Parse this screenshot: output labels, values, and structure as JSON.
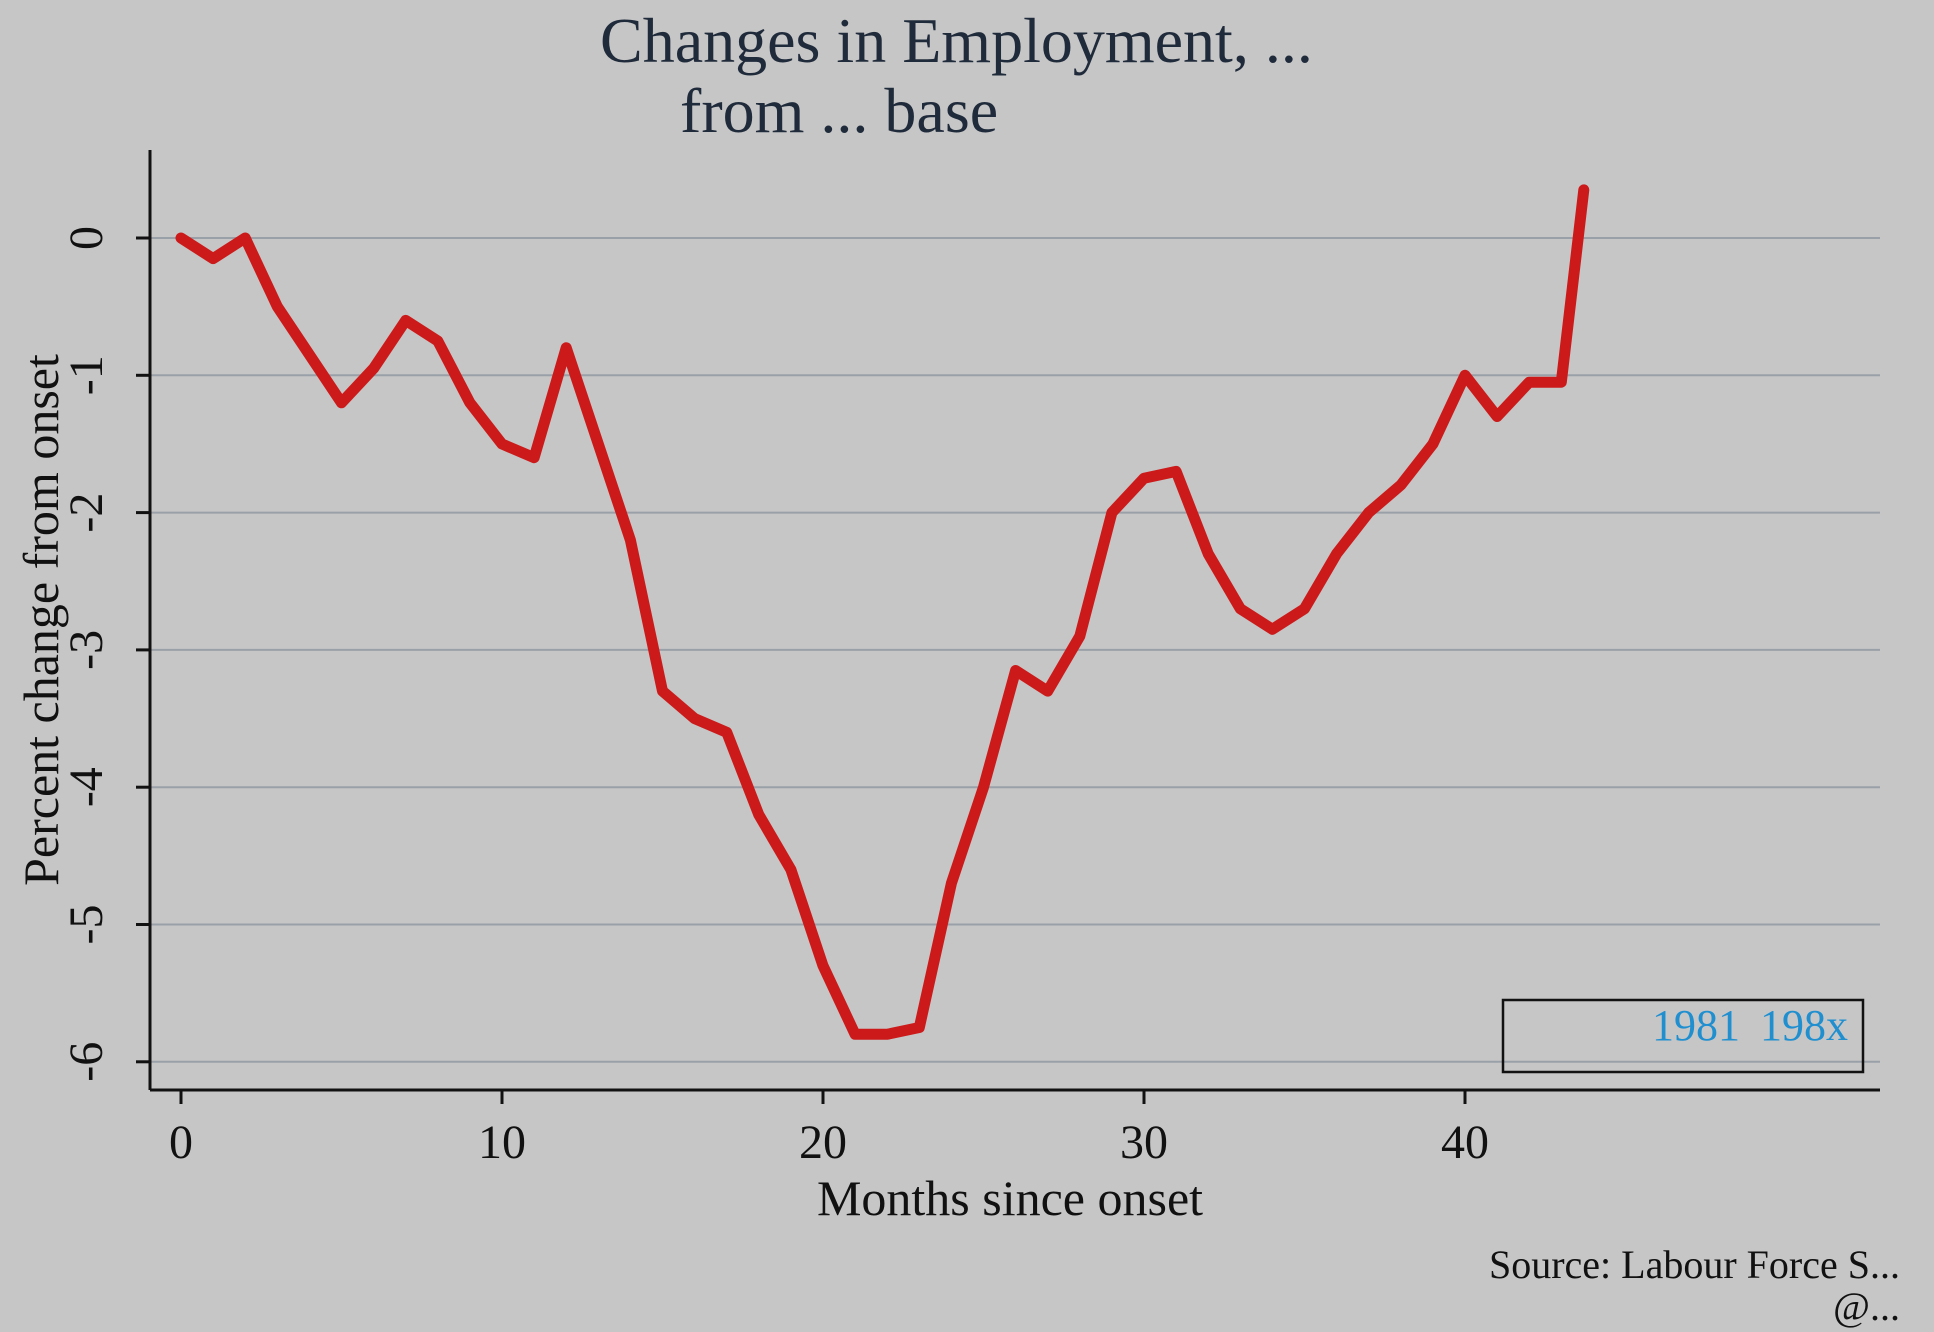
{
  "chart_data": {
    "type": "line",
    "title": "Changes in Employment, ...",
    "subtitle": "from ... base",
    "xlabel": "Months since onset",
    "ylabel": "Percent change from onset",
    "xlim": [
      0,
      50
    ],
    "ylim": [
      -6.2,
      0.6
    ],
    "x_ticks": [
      0,
      10,
      20,
      30,
      40
    ],
    "y_ticks": [
      0,
      -1,
      -2,
      -3,
      -4,
      -5,
      -6
    ],
    "grid": "horizontal",
    "legend_position": "bottom-right",
    "legend_entries": [
      "1981",
      "198x"
    ],
    "source": "Source: Labour Force S...",
    "credit": "@...",
    "series": [
      {
        "color": "#cc1a1a",
        "x": [
          0,
          1,
          2,
          3,
          4,
          5,
          6,
          7,
          8,
          9,
          10,
          11,
          12,
          13,
          14,
          15,
          16,
          17,
          18,
          19,
          20,
          21,
          22,
          23,
          24,
          25,
          26,
          27,
          28,
          29,
          30,
          31,
          32,
          33,
          34,
          35,
          36,
          37,
          38,
          39,
          40,
          41,
          42,
          43
        ],
        "y": [
          0,
          -0.15,
          0,
          -0.5,
          -0.85,
          -1.2,
          -0.95,
          -0.6,
          -0.75,
          -1.2,
          -1.5,
          -1.6,
          -0.8,
          -1.5,
          -2.2,
          -3.3,
          -3.5,
          -3.6,
          -4.2,
          -4.6,
          -5.3,
          -5.8,
          -5.8,
          -5.75,
          -4.7,
          -4.0,
          -3.15,
          -3.3,
          -2.9,
          -2.0,
          -1.75,
          -1.7,
          -2.3,
          -2.7,
          -2.85,
          -2.7,
          -2.3,
          -2.0,
          -1.8,
          -1.5,
          -1.0,
          -1.3,
          -1.05,
          -1.05
        ]
      }
    ],
    "tail_point": [
      43.7,
      0.35
    ]
  },
  "colors": {
    "background": "#c6c6c6",
    "line": "#cc1a1a",
    "grid": "#9aa0a8",
    "legend_text": "#1f8fd0"
  }
}
